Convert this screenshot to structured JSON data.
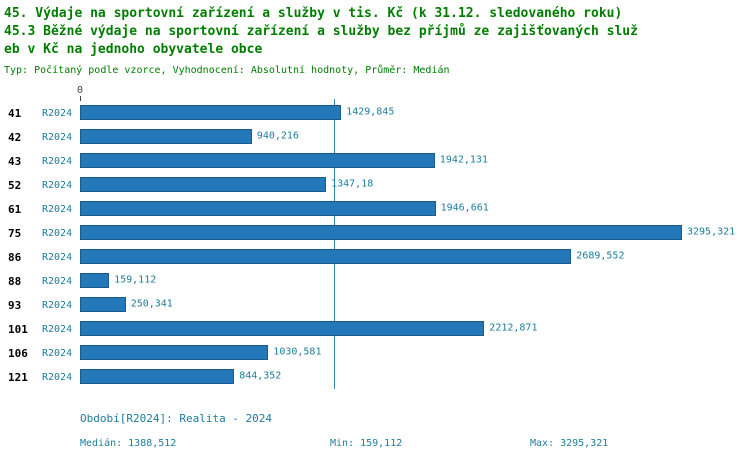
{
  "title": {
    "line1": "45. Výdaje na sportovní zařízení a služby v tis. Kč (k 31.12. sledovaného roku)",
    "line2": "45.3 Běžné výdaje na sportovní zařízení a služby bez příjmů ze zajišťovaných služ",
    "line3": "eb v Kč na jednoho obyvatele obce",
    "meta": "Typ: Počítaný podle vzorce, Vyhodnocení: Absolutní hodnoty, Průměr: Medián"
  },
  "chart_data": {
    "type": "bar",
    "orientation": "horizontal",
    "title": "45.3 Běžné výdaje na sportovní zařízení a služby bez příjmů ze zajišťovaných služeb v Kč na jednoho obyvatele obce",
    "categories": [
      "41",
      "42",
      "43",
      "52",
      "61",
      "75",
      "86",
      "88",
      "93",
      "101",
      "106",
      "121"
    ],
    "series_label": "R2024",
    "values": [
      1429.845,
      940.216,
      1942.131,
      1347.18,
      1946.661,
      3295.321,
      2689.552,
      159.112,
      250.341,
      2212.871,
      1030.581,
      844.352
    ],
    "value_labels": [
      "1429,845",
      "940,216",
      "1942,131",
      "1347,18",
      "1946,661",
      "3295,321",
      "2689,552",
      "159,112",
      "250,341",
      "2212,871",
      "1030,581",
      "844,352"
    ],
    "x_axis_origin_label": "0",
    "xlim": [
      0,
      3295.321
    ],
    "median_line_value": 1388.512,
    "grid": "off",
    "legend": "none",
    "bar_color": "#2478b8",
    "bar_border_color": "#1a5a8c",
    "accent_text_color": "#1d7d9d",
    "title_color": "#007d00"
  },
  "footer": {
    "period": "Období[R2024]: Realita - 2024",
    "median": "Medián: 1388,512",
    "min": "Min: 159,112",
    "max": "Max: 3295,321"
  }
}
